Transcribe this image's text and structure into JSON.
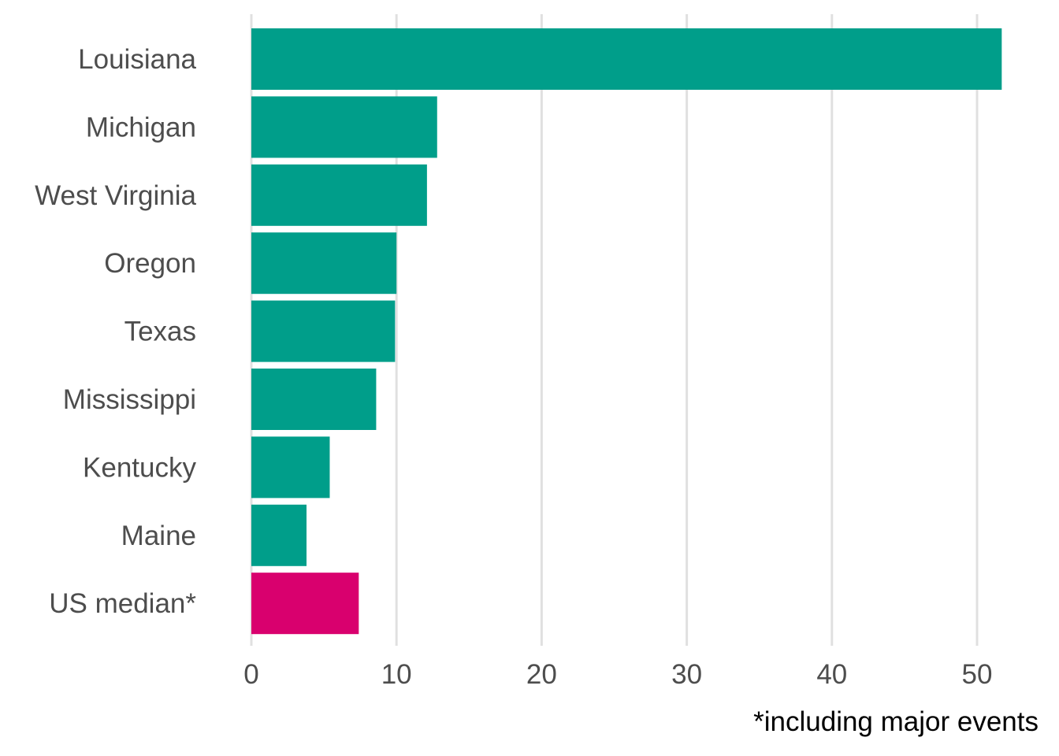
{
  "chart_data": {
    "type": "bar",
    "orientation": "horizontal",
    "categories": [
      "Louisiana",
      "Michigan",
      "West Virginia",
      "Oregon",
      "Texas",
      "Mississippi",
      "Kentucky",
      "Maine",
      "US median*"
    ],
    "values": [
      51.7,
      12.8,
      12.1,
      10.0,
      9.9,
      8.6,
      5.4,
      3.8,
      7.4
    ],
    "colors": [
      "#009E8A",
      "#009E8A",
      "#009E8A",
      "#009E8A",
      "#009E8A",
      "#009E8A",
      "#009E8A",
      "#009E8A",
      "#D9006E"
    ],
    "title": "",
    "xlabel": "",
    "ylabel": "",
    "xlim": [
      0,
      52
    ],
    "xticks": [
      0,
      10,
      20,
      30,
      40,
      50
    ],
    "grid": "vertical",
    "legend": "none",
    "note": "*including major events"
  }
}
